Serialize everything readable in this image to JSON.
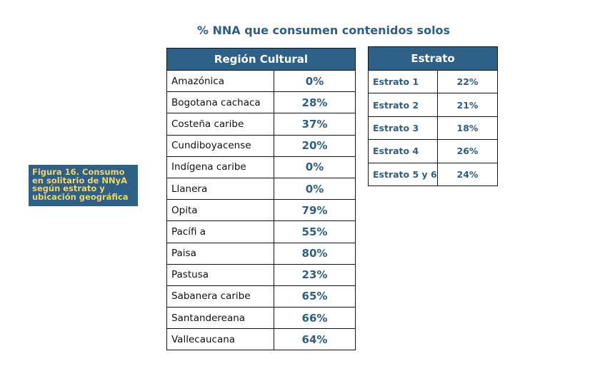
{
  "title": "% NNA que consumen contenidos solos",
  "caption": {
    "lines": [
      "Figura 16. Consumo",
      "en solitario de NNyA",
      "según estrato y",
      "ubicación geográfica"
    ]
  },
  "region_table": {
    "header": "Región Cultural",
    "rows": [
      {
        "name": "Amazónica",
        "value": "0%"
      },
      {
        "name": "Bogotana cachaca",
        "value": "28%"
      },
      {
        "name": "Costeña caribe",
        "value": "37%"
      },
      {
        "name": "Cundiboyacense",
        "value": "20%"
      },
      {
        "name": "Indígena caribe",
        "value": "0%"
      },
      {
        "name": "Llanera",
        "value": "0%"
      },
      {
        "name": "Opita",
        "value": "79%"
      },
      {
        "name": "Pacífi  a",
        "value": "55%"
      },
      {
        "name": "Paisa",
        "value": "80%"
      },
      {
        "name": "Pastusa",
        "value": "23%"
      },
      {
        "name": "Sabanera caribe",
        "value": "65%"
      },
      {
        "name": "Santandereana",
        "value": "66%"
      },
      {
        "name": "Vallecaucana",
        "value": "64%"
      }
    ]
  },
  "estrato_table": {
    "header": "Estrato",
    "rows": [
      {
        "name": "Estrato 1",
        "value": "22%"
      },
      {
        "name": "Estrato 2",
        "value": "21%"
      },
      {
        "name": "Estrato 3",
        "value": "18%"
      },
      {
        "name": "Estrato 4",
        "value": "26%"
      },
      {
        "name": "Estrato 5 y 6",
        "value": "24%"
      }
    ]
  },
  "colors": {
    "header_bg": "#2e6187",
    "header_text": "#ffffff",
    "value_text": "#2e5f86",
    "caption_text": "#f4d564"
  }
}
